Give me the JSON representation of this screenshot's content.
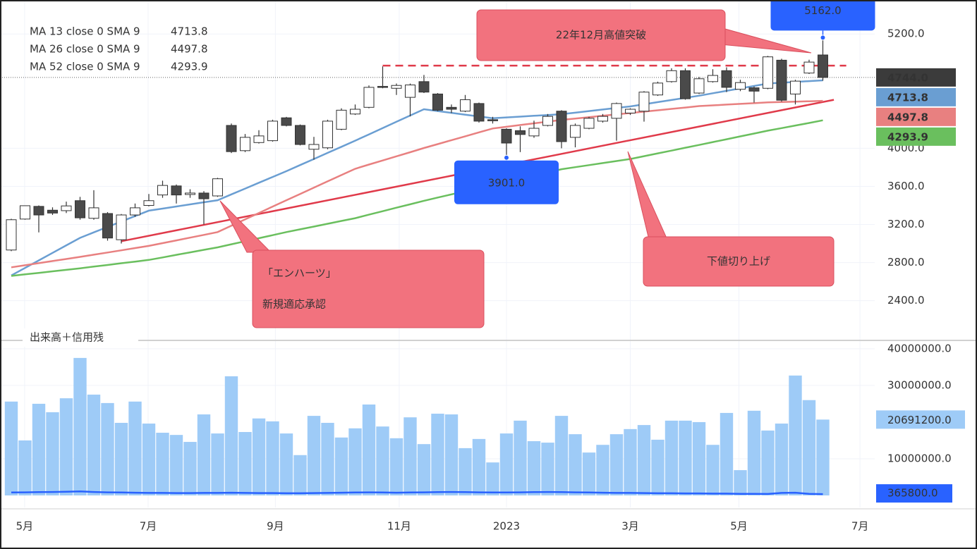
{
  "chart_data": [
    {
      "type": "candlestick",
      "categories": [
        null,
        null,
        null,
        null,
        null,
        null,
        null,
        null,
        null,
        null,
        null,
        null,
        null,
        null,
        null,
        null,
        null,
        null,
        null,
        null,
        null,
        null,
        null,
        null,
        null,
        null,
        null,
        null,
        null,
        null,
        null,
        null,
        null,
        null,
        null,
        null,
        null,
        null,
        null,
        null,
        null,
        null,
        null,
        null,
        null,
        null,
        null,
        null,
        null,
        null,
        null,
        null,
        null,
        null,
        null,
        null,
        null,
        null,
        null,
        null
      ],
      "open": [
        2932,
        3257,
        3390,
        3350,
        3345,
        3450,
        3265,
        3315,
        3040,
        3300,
        3400,
        3510,
        3605,
        3515,
        3530,
        3500,
        4240,
        3975,
        4060,
        4080,
        4320,
        4240,
        3990,
        4005,
        4200,
        4360,
        4430,
        4650,
        4630,
        4535,
        4700,
        4570,
        4430,
        4390,
        4470,
        4300,
        4200,
        4185,
        4130,
        4240,
        4390,
        4115,
        4210,
        4285,
        4315,
        4370,
        4390,
        4560,
        4700,
        4815,
        4580,
        4700,
        4815,
        4620,
        4635,
        4630,
        4925,
        4570,
        4790,
        4980
      ],
      "high": [
        3260,
        3400,
        3400,
        3380,
        3440,
        3490,
        3560,
        3330,
        3310,
        3420,
        3520,
        3660,
        3620,
        3570,
        3550,
        3690,
        4260,
        4150,
        4190,
        4300,
        4330,
        4250,
        4120,
        4300,
        4420,
        4460,
        4660,
        4860,
        4680,
        4680,
        4770,
        4580,
        4460,
        4560,
        4480,
        4330,
        4210,
        4230,
        4290,
        4360,
        4400,
        4260,
        4330,
        4360,
        4480,
        4420,
        4600,
        4700,
        4840,
        4840,
        4750,
        4830,
        4850,
        4720,
        4650,
        4970,
        4940,
        4720,
        4930,
        5162
      ],
      "low": [
        2920,
        3250,
        3117,
        3300,
        3320,
        3250,
        3250,
        3030,
        3000,
        3280,
        3390,
        3480,
        3420,
        3480,
        3200,
        3490,
        3950,
        3960,
        4050,
        4070,
        4230,
        4030,
        3880,
        3990,
        4190,
        4350,
        4420,
        4630,
        4560,
        4335,
        4580,
        4390,
        4370,
        4380,
        4270,
        4260,
        3901,
        3960,
        4110,
        4230,
        4000,
        4010,
        4200,
        4270,
        4080,
        4350,
        4280,
        4550,
        4690,
        4510,
        4570,
        4690,
        4590,
        4600,
        4480,
        4620,
        4490,
        4460,
        4780,
        4710
      ],
      "close": [
        3250,
        3397,
        3300,
        3320,
        3395,
        3270,
        3375,
        3058,
        3300,
        3375,
        3450,
        3610,
        3510,
        3530,
        3470,
        3680,
        3965,
        4115,
        4130,
        4285,
        4240,
        4040,
        4040,
        4285,
        4400,
        4410,
        4640,
        4640,
        4660,
        4665,
        4590,
        4400,
        4410,
        4510,
        4285,
        4295,
        4055,
        4145,
        4210,
        4335,
        4070,
        4240,
        4315,
        4335,
        4470,
        4410,
        4590,
        4685,
        4815,
        4520,
        4730,
        4765,
        4640,
        4690,
        4600,
        4960,
        4505,
        4705,
        4905,
        4744
      ],
      "last_close_label": "4744.0",
      "up_color": "#ffffff",
      "down_color": "#4a4a4a",
      "last_color": "#3b3b3b",
      "xlim": [
        -0.82,
        62.77
      ],
      "xticks": [
        {
          "value": 0.97,
          "label": "5月"
        },
        {
          "value": 9.95,
          "label": "7月"
        },
        {
          "value": 19.2,
          "label": "9月"
        },
        {
          "value": 28.2,
          "label": "11月"
        },
        {
          "value": 36.0,
          "label": "2023"
        },
        {
          "value": 45.0,
          "label": "3月"
        },
        {
          "value": 52.9,
          "label": "5月"
        },
        {
          "value": 61.7,
          "label": "7月"
        }
      ],
      "ylim": [
        2020,
        5520
      ],
      "yticks": [
        {
          "value": 2400,
          "label": "2400.0"
        },
        {
          "value": 2800,
          "label": "2800.0"
        },
        {
          "value": 3200,
          "label": "3200.0"
        },
        {
          "value": 3600,
          "label": "3600.0"
        },
        {
          "value": 4000,
          "label": "4000.0"
        },
        {
          "value": 5200,
          "label": "5200.0"
        }
      ],
      "grid": true,
      "series": [
        {
          "name": "MA 13 close 0 SMA 9",
          "color": "#6a9ed2",
          "values": [
            2665,
            2744,
            2823,
            2902,
            2981,
            3060,
            3117,
            3174,
            3231,
            3288,
            3345,
            3367,
            3389,
            3411,
            3433,
            3455,
            3516,
            3577,
            3638,
            3699,
            3760,
            3824,
            3888,
            3952,
            4016,
            4080,
            4146,
            4212,
            4278,
            4344,
            4410,
            4391,
            4372,
            4353,
            4334,
            4315,
            4324,
            4332,
            4341,
            4349,
            4358,
            4374,
            4391,
            4407,
            4424,
            4440,
            4462,
            4485,
            4507,
            4530,
            4552,
            4578,
            4603,
            4629,
            4654,
            4680,
            4688,
            4697,
            4705,
            4713.8
          ]
        },
        {
          "name": "MA 26 close 0 SMA 9",
          "color": "#e88080",
          "values": [
            2750,
            2772,
            2794,
            2816,
            2838,
            2860,
            2883,
            2906,
            2929,
            2952,
            2975,
            3004,
            3033,
            3062,
            3091,
            3120,
            3187,
            3254,
            3321,
            3388,
            3455,
            3521,
            3587,
            3653,
            3719,
            3785,
            3829,
            3872,
            3916,
            3959,
            4003,
            4044,
            4085,
            4126,
            4167,
            4208,
            4226,
            4244,
            4262,
            4280,
            4298,
            4312,
            4327,
            4341,
            4356,
            4370,
            4385,
            4399,
            4414,
            4428,
            4443,
            4451,
            4459,
            4466,
            4474,
            4482,
            4486,
            4490,
            4494,
            4497.8
          ]
        },
        {
          "name": "MA 52 close 0 SMA 9",
          "color": "#6abf5e",
          "values": [
            2660,
            2676,
            2692,
            2708,
            2724,
            2740,
            2758,
            2775,
            2793,
            2810,
            2828,
            2854,
            2881,
            2907,
            2934,
            2960,
            2992,
            3024,
            3056,
            3088,
            3120,
            3149,
            3178,
            3208,
            3237,
            3266,
            3303,
            3339,
            3376,
            3412,
            3449,
            3483,
            3516,
            3550,
            3583,
            3617,
            3650,
            3682,
            3715,
            3747,
            3780,
            3802,
            3823,
            3845,
            3866,
            3888,
            3917,
            3947,
            3976,
            4006,
            4035,
            4065,
            4095,
            4125,
            4155,
            4185,
            4212,
            4239,
            4266,
            4293.9
          ]
        }
      ],
      "lines": [
        {
          "color": "#e03a4a",
          "style": "solid",
          "x": [
            8,
            59.8
          ],
          "y": [
            3024,
            4509
          ]
        },
        {
          "color": "#e03a4a",
          "style": "dashed",
          "x": [
            27,
            60.7
          ],
          "y": [
            4868,
            4868
          ]
        }
      ],
      "extremes": [
        {
          "value": 5162,
          "label": "5162.0"
        },
        {
          "value": 3901,
          "label": "3901.0"
        }
      ],
      "annotations": [
        [
          "22年12月高値突破"
        ],
        [
          "「エンハーツ」",
          "新規適応承認"
        ],
        [
          "下値切り上げ"
        ]
      ]
    },
    {
      "type": "bar",
      "title": "出来高＋信用残",
      "color": "#9ecbf7",
      "values": [
        25600000,
        15000000,
        25000000,
        22700000,
        26500000,
        37500000,
        27500000,
        25200000,
        19800000,
        25600000,
        19600000,
        17100000,
        16500000,
        14600000,
        22100000,
        16900000,
        32500000,
        17300000,
        21000000,
        20200000,
        16900000,
        11000000,
        21700000,
        19800000,
        15800000,
        18300000,
        24800000,
        18800000,
        15600000,
        21300000,
        14000000,
        22300000,
        22100000,
        12900000,
        15400000,
        9000000,
        16900000,
        20400000,
        14800000,
        14400000,
        21700000,
        16700000,
        11700000,
        13800000,
        16700000,
        18100000,
        19200000,
        15200000,
        20400000,
        20400000,
        20000000,
        13800000,
        22500000,
        6900000,
        23100000,
        17700000,
        19600000,
        32700000,
        26000000,
        20691200
      ],
      "last_label": "20691200.0",
      "ylim": [
        0,
        41900000
      ],
      "yticks": [
        {
          "value": 10000000,
          "label": "10000000.0"
        },
        {
          "value": 30000000,
          "label": "30000000.0"
        },
        {
          "value": 40000000,
          "label": "40000000.0"
        }
      ],
      "series": [
        {
          "color": "#2962ff",
          "values": [
            800000,
            850000,
            900000,
            950000,
            1000000,
            1100000,
            950000,
            850000,
            800000,
            750000,
            700000,
            700000,
            650000,
            650000,
            700000,
            700000,
            750000,
            700000,
            650000,
            650000,
            600000,
            600000,
            650000,
            700000,
            750000,
            800000,
            850000,
            800000,
            750000,
            800000,
            850000,
            900000,
            950000,
            900000,
            850000,
            800000,
            800000,
            850000,
            900000,
            950000,
            900000,
            850000,
            800000,
            750000,
            700000,
            700000,
            650000,
            600000,
            600000,
            550000,
            550000,
            500000,
            500000,
            450000,
            450000,
            400000,
            700000,
            750000,
            450000,
            365800
          ],
          "last_label": "365800.0"
        }
      ]
    }
  ]
}
